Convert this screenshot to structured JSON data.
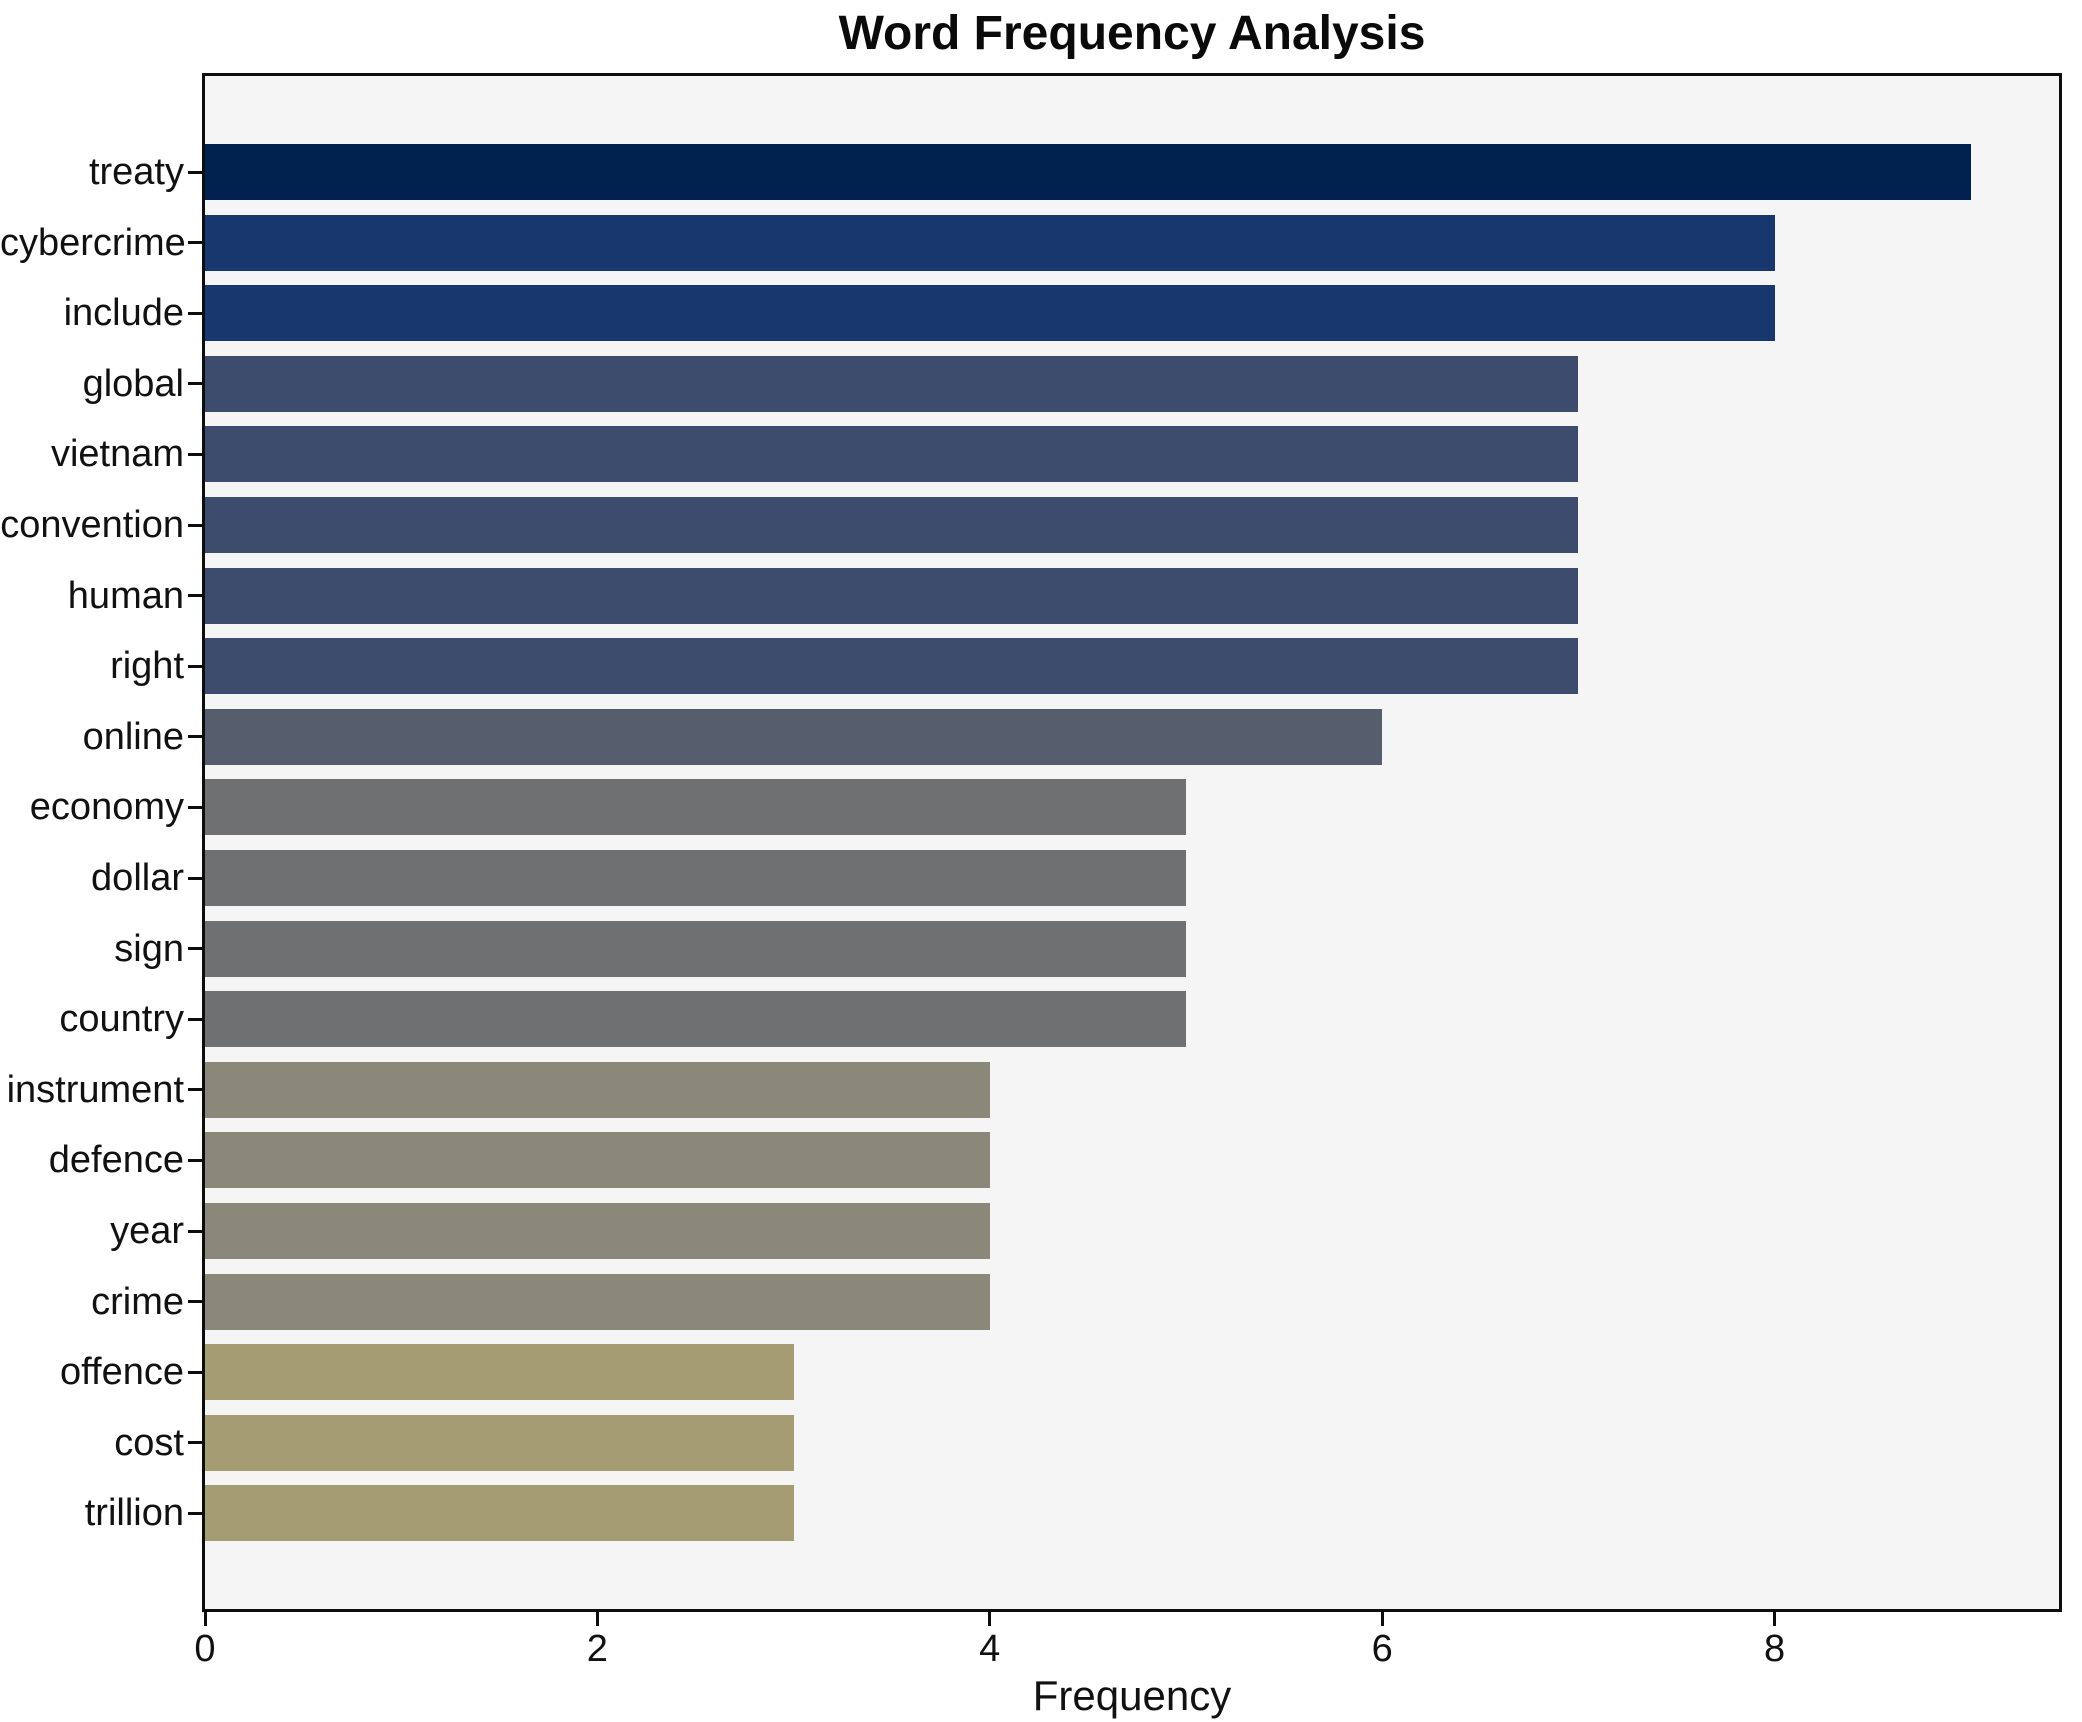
{
  "chart_data": {
    "type": "bar",
    "orientation": "horizontal",
    "title": "Word Frequency Analysis",
    "xlabel": "Frequency",
    "ylabel": "",
    "categories": [
      "treaty",
      "cybercrime",
      "include",
      "global",
      "vietnam",
      "convention",
      "human",
      "right",
      "online",
      "economy",
      "dollar",
      "sign",
      "country",
      "instrument",
      "defence",
      "year",
      "crime",
      "offence",
      "cost",
      "trillion"
    ],
    "values": [
      9,
      8,
      8,
      7,
      7,
      7,
      7,
      7,
      6,
      5,
      5,
      5,
      5,
      4,
      4,
      4,
      4,
      3,
      3,
      3
    ],
    "xlim": [
      0,
      9.45
    ],
    "xticks": [
      0,
      2,
      4,
      6,
      8
    ],
    "grid": false,
    "legend": null,
    "value_colors": {
      "9": "#01214f",
      "8": "#17376e",
      "7": "#3d4b6c",
      "6": "#565d6c",
      "5": "#6f7072",
      "4": "#8a8878",
      "3": "#a59c73"
    },
    "plot_background": "#f5f5f6",
    "figure_background": "#ffffff",
    "spine_color": "#0d0d0d",
    "text_color": "#111111"
  }
}
